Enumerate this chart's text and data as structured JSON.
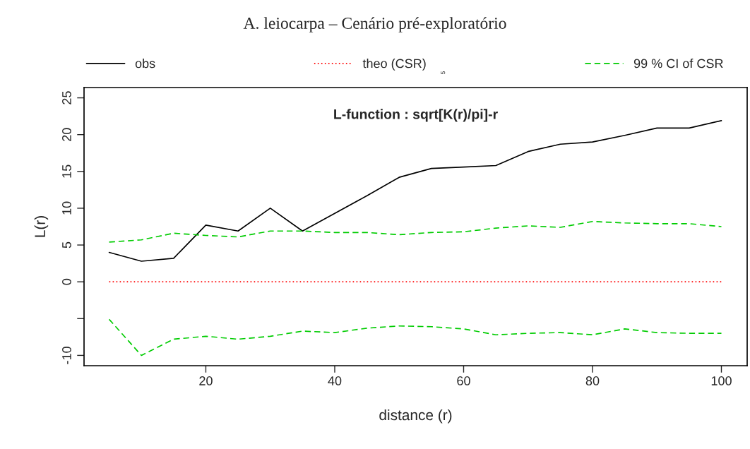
{
  "chart_data": {
    "type": "line",
    "title": "A. leiocarpa – Cenário pré-exploratório",
    "subtitle": "L-function : sqrt[K(r)/pi]-r",
    "xlabel": "distance (r)",
    "ylabel": "L(r)",
    "x": [
      5,
      10,
      15,
      20,
      25,
      30,
      35,
      40,
      45,
      50,
      55,
      60,
      65,
      70,
      75,
      80,
      85,
      90,
      95,
      100
    ],
    "series": [
      {
        "name": "obs",
        "color": "#000000",
        "line_style": "solid",
        "values": [
          4.0,
          2.8,
          3.2,
          7.7,
          6.9,
          10.0,
          6.9,
          9.3,
          11.7,
          14.2,
          15.4,
          15.6,
          15.8,
          17.7,
          18.7,
          19.0,
          19.9,
          20.9,
          20.9,
          21.9
        ]
      },
      {
        "name": "theo (CSR)",
        "color": "#ff0000",
        "line_style": "dotted",
        "values": [
          0,
          0,
          0,
          0,
          0,
          0,
          0,
          0,
          0,
          0,
          0,
          0,
          0,
          0,
          0,
          0,
          0,
          0,
          0,
          0
        ]
      },
      {
        "name": "99 % CI of CSR",
        "color": "#00cc00",
        "line_style": "dashed",
        "values": [
          5.4,
          5.7,
          6.6,
          6.3,
          6.1,
          6.9,
          6.9,
          6.7,
          6.7,
          6.4,
          6.7,
          6.8,
          7.3,
          7.6,
          7.4,
          8.2,
          8.0,
          7.9,
          7.9,
          7.5
        ]
      },
      {
        "color": "#00cc00",
        "line_style": "dashed",
        "values": [
          -5.1,
          -10.0,
          -7.8,
          -7.4,
          -7.8,
          -7.4,
          -6.7,
          -6.9,
          -6.3,
          -6.0,
          -6.1,
          -6.4,
          -7.2,
          -7.0,
          -6.9,
          -7.2,
          -6.4,
          -6.9,
          -7.0,
          -7.0
        ]
      }
    ],
    "xlim": [
      1.1,
      104
    ],
    "ylim": [
      -11.4,
      26.4
    ],
    "xticks": [
      20,
      40,
      60,
      80,
      100
    ],
    "yticks": [
      -10,
      {
        "value": -5,
        "label": null
      },
      0,
      5,
      10,
      15,
      20,
      25
    ],
    "grid": false,
    "legend": "top",
    "marker": "none",
    "annotations": [
      "5"
    ]
  }
}
